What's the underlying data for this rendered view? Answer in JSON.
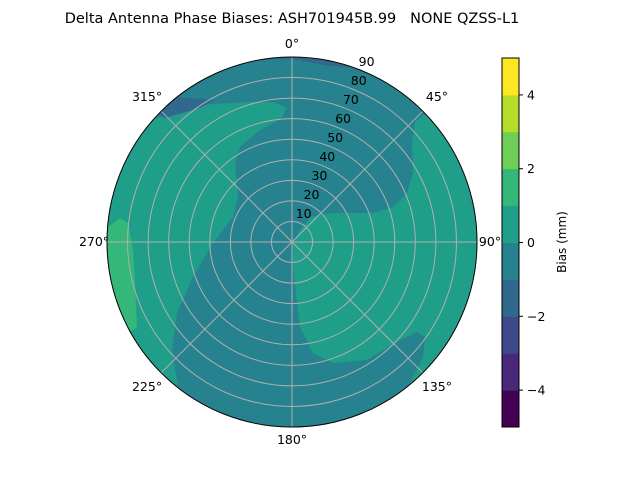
{
  "chart_data": {
    "type": "heatmap",
    "subtype": "polar-filled-contour",
    "title": "Delta Antenna Phase Biases: ASH701945B.99   NONE QZSS-L1",
    "theta_zero": "north",
    "theta_direction": "clockwise",
    "theta_ticks": [
      0,
      45,
      90,
      135,
      180,
      225,
      270,
      315
    ],
    "theta_tick_labels": [
      "0°",
      "45°",
      "90°",
      "135°",
      "180°",
      "225°",
      "270°",
      "315°"
    ],
    "r_ticks": [
      10,
      20,
      30,
      40,
      50,
      60,
      70,
      80,
      90
    ],
    "r_tick_labels": [
      "10",
      "20",
      "30",
      "40",
      "50",
      "60",
      "70",
      "80",
      "90"
    ],
    "rlim": [
      0,
      90
    ],
    "grid": true,
    "levels": [
      -5,
      -4,
      -3,
      -2,
      -1,
      0,
      1,
      2,
      3,
      4,
      5
    ],
    "level_colors": [
      "#440154",
      "#482878",
      "#3e4989",
      "#31688e",
      "#26828e",
      "#1f9e89",
      "#35b779",
      "#6ece58",
      "#b5de2b",
      "#fde725"
    ],
    "regions": [
      {
        "description_level": [
          -1,
          0
        ],
        "where": "background / center / upper-right and lower-left sweep"
      },
      {
        "description_level": [
          0,
          1
        ],
        "where": "upper-left to lower-left arc and right half lobe"
      },
      {
        "description_level": [
          1,
          2
        ],
        "where": "left edge near 270°"
      },
      {
        "description_level": [
          -2,
          -1
        ],
        "where": "top edge near 0°-20° at 90° elevation"
      }
    ],
    "colorbar": {
      "label": "Bias (mm)",
      "range": [
        -5,
        5
      ],
      "ticks": [
        -4,
        -2,
        0,
        2,
        4
      ],
      "tick_labels": [
        "−4",
        "−2",
        "0",
        "2",
        "4"
      ]
    }
  }
}
